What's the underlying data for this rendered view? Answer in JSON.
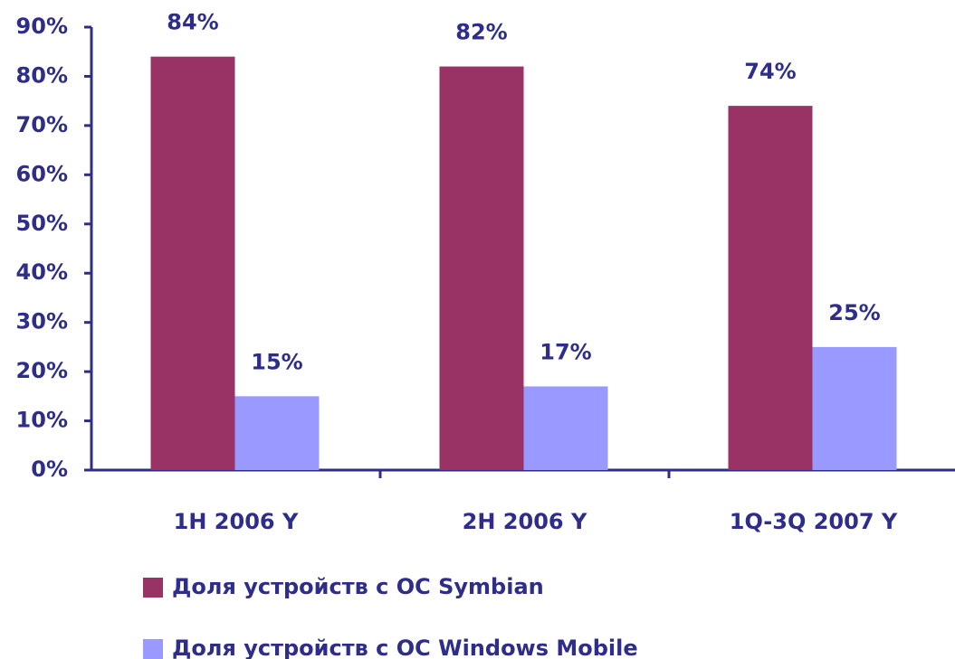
{
  "chart_data": {
    "type": "bar",
    "categories": [
      "1H 2006 Y",
      "2H 2006 Y",
      "1Q-3Q 2007 Y"
    ],
    "series": [
      {
        "name": "Доля устройств с ОС Symbian",
        "color": "#993366",
        "values": [
          84,
          82,
          74
        ],
        "value_labels": [
          "84%",
          "82%",
          "74%"
        ]
      },
      {
        "name": "Доля устройств с ОС Windows Mobile",
        "color": "#9999ff",
        "values": [
          15,
          17,
          25
        ],
        "value_labels": [
          "15%",
          "17%",
          "25%"
        ]
      }
    ],
    "ylim": [
      0,
      90
    ],
    "yticks": [
      {
        "value": 0,
        "label": "0%"
      },
      {
        "value": 10,
        "label": "10%"
      },
      {
        "value": 20,
        "label": "20%"
      },
      {
        "value": 30,
        "label": "30%"
      },
      {
        "value": 40,
        "label": "40%"
      },
      {
        "value": 50,
        "label": "50%"
      },
      {
        "value": 60,
        "label": "60%"
      },
      {
        "value": 70,
        "label": "70%"
      },
      {
        "value": 80,
        "label": "80%"
      },
      {
        "value": 90,
        "label": "90%"
      }
    ],
    "legend": "bottom"
  }
}
